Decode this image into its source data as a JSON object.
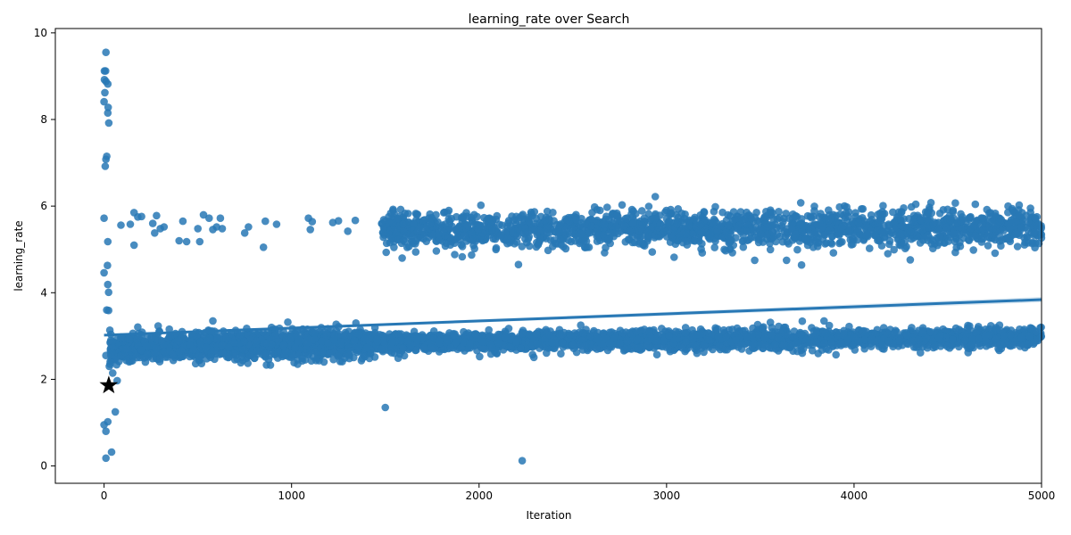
{
  "chart_data": {
    "type": "scatter",
    "title": "learning_rate over Search",
    "xlabel": "Iteration",
    "ylabel": "learning_rate",
    "xlim": [
      -260,
      5000
    ],
    "ylim": [
      -0.4,
      10.1
    ],
    "xticks": [
      0,
      1000,
      2000,
      3000,
      4000,
      5000
    ],
    "yticks": [
      0,
      2,
      4,
      6,
      8,
      10
    ],
    "grid": false,
    "point_color": "#2878b5",
    "line_color": "#2878b5",
    "clusters": [
      {
        "x_start": 30,
        "x_end": 1450,
        "y_start": 2.7,
        "y_end": 2.85,
        "spread": 0.16,
        "count": 1400
      },
      {
        "x_start": 1450,
        "x_end": 5000,
        "y_start": 2.85,
        "y_end": 2.97,
        "spread": 0.11,
        "count": 2600
      },
      {
        "x_start": 1480,
        "x_end": 5000,
        "y_start": 5.45,
        "y_end": 5.5,
        "spread": 0.2,
        "count": 1900
      }
    ],
    "outliers": [
      [
        10,
        9.55
      ],
      [
        2,
        9.12
      ],
      [
        8,
        9.12
      ],
      [
        2,
        8.92
      ],
      [
        10,
        8.88
      ],
      [
        20,
        8.82
      ],
      [
        4,
        8.62
      ],
      [
        0,
        8.41
      ],
      [
        22,
        8.28
      ],
      [
        20,
        8.15
      ],
      [
        25,
        7.92
      ],
      [
        14,
        7.15
      ],
      [
        10,
        7.08
      ],
      [
        6,
        6.92
      ],
      [
        0,
        5.72
      ],
      [
        20,
        5.18
      ],
      [
        18,
        4.63
      ],
      [
        0,
        4.46
      ],
      [
        20,
        4.19
      ],
      [
        24,
        4.01
      ],
      [
        14,
        3.6
      ],
      [
        24,
        3.59
      ],
      [
        10,
        2.55
      ],
      [
        0,
        0.95
      ],
      [
        20,
        1.02
      ],
      [
        10,
        0.8
      ],
      [
        40,
        0.32
      ],
      [
        10,
        0.18
      ],
      [
        60,
        1.25
      ],
      [
        70,
        1.97
      ],
      [
        28,
        2.3
      ],
      [
        32,
        2.35
      ],
      [
        90,
        5.56
      ],
      [
        140,
        5.58
      ],
      [
        160,
        5.85
      ],
      [
        180,
        5.75
      ],
      [
        200,
        5.76
      ],
      [
        160,
        5.1
      ],
      [
        260,
        5.6
      ],
      [
        280,
        5.78
      ],
      [
        300,
        5.48
      ],
      [
        320,
        5.52
      ],
      [
        270,
        5.38
      ],
      [
        400,
        5.2
      ],
      [
        420,
        5.65
      ],
      [
        440,
        5.18
      ],
      [
        500,
        5.48
      ],
      [
        510,
        5.18
      ],
      [
        530,
        5.8
      ],
      [
        560,
        5.72
      ],
      [
        580,
        5.46
      ],
      [
        600,
        5.52
      ],
      [
        620,
        5.72
      ],
      [
        630,
        5.48
      ],
      [
        750,
        5.38
      ],
      [
        770,
        5.52
      ],
      [
        860,
        5.65
      ],
      [
        850,
        5.05
      ],
      [
        920,
        5.58
      ],
      [
        1090,
        5.72
      ],
      [
        1100,
        5.46
      ],
      [
        1110,
        5.64
      ],
      [
        1220,
        5.62
      ],
      [
        1250,
        5.66
      ],
      [
        1300,
        5.42
      ],
      [
        1340,
        5.67
      ],
      [
        980,
        3.32
      ],
      [
        1500,
        1.35
      ],
      [
        2230,
        0.12
      ],
      [
        1590,
        4.8
      ],
      [
        1870,
        4.88
      ],
      [
        1910,
        4.83
      ],
      [
        1960,
        4.87
      ],
      [
        2210,
        4.65
      ],
      [
        3040,
        4.82
      ],
      [
        3190,
        4.92
      ],
      [
        3470,
        4.75
      ],
      [
        3640,
        4.75
      ],
      [
        3720,
        4.64
      ],
      [
        3890,
        4.92
      ],
      [
        4300,
        4.76
      ],
      [
        4540,
        4.93
      ],
      [
        2940,
        6.22
      ],
      [
        4410,
        6.08
      ],
      [
        4540,
        6.07
      ],
      [
        3840,
        3.35
      ],
      [
        580,
        3.35
      ]
    ],
    "trend_line": {
      "x": [
        0,
        5000
      ],
      "y": [
        3.02,
        3.84
      ]
    },
    "best_point": {
      "x": 25,
      "y": 1.86
    }
  }
}
